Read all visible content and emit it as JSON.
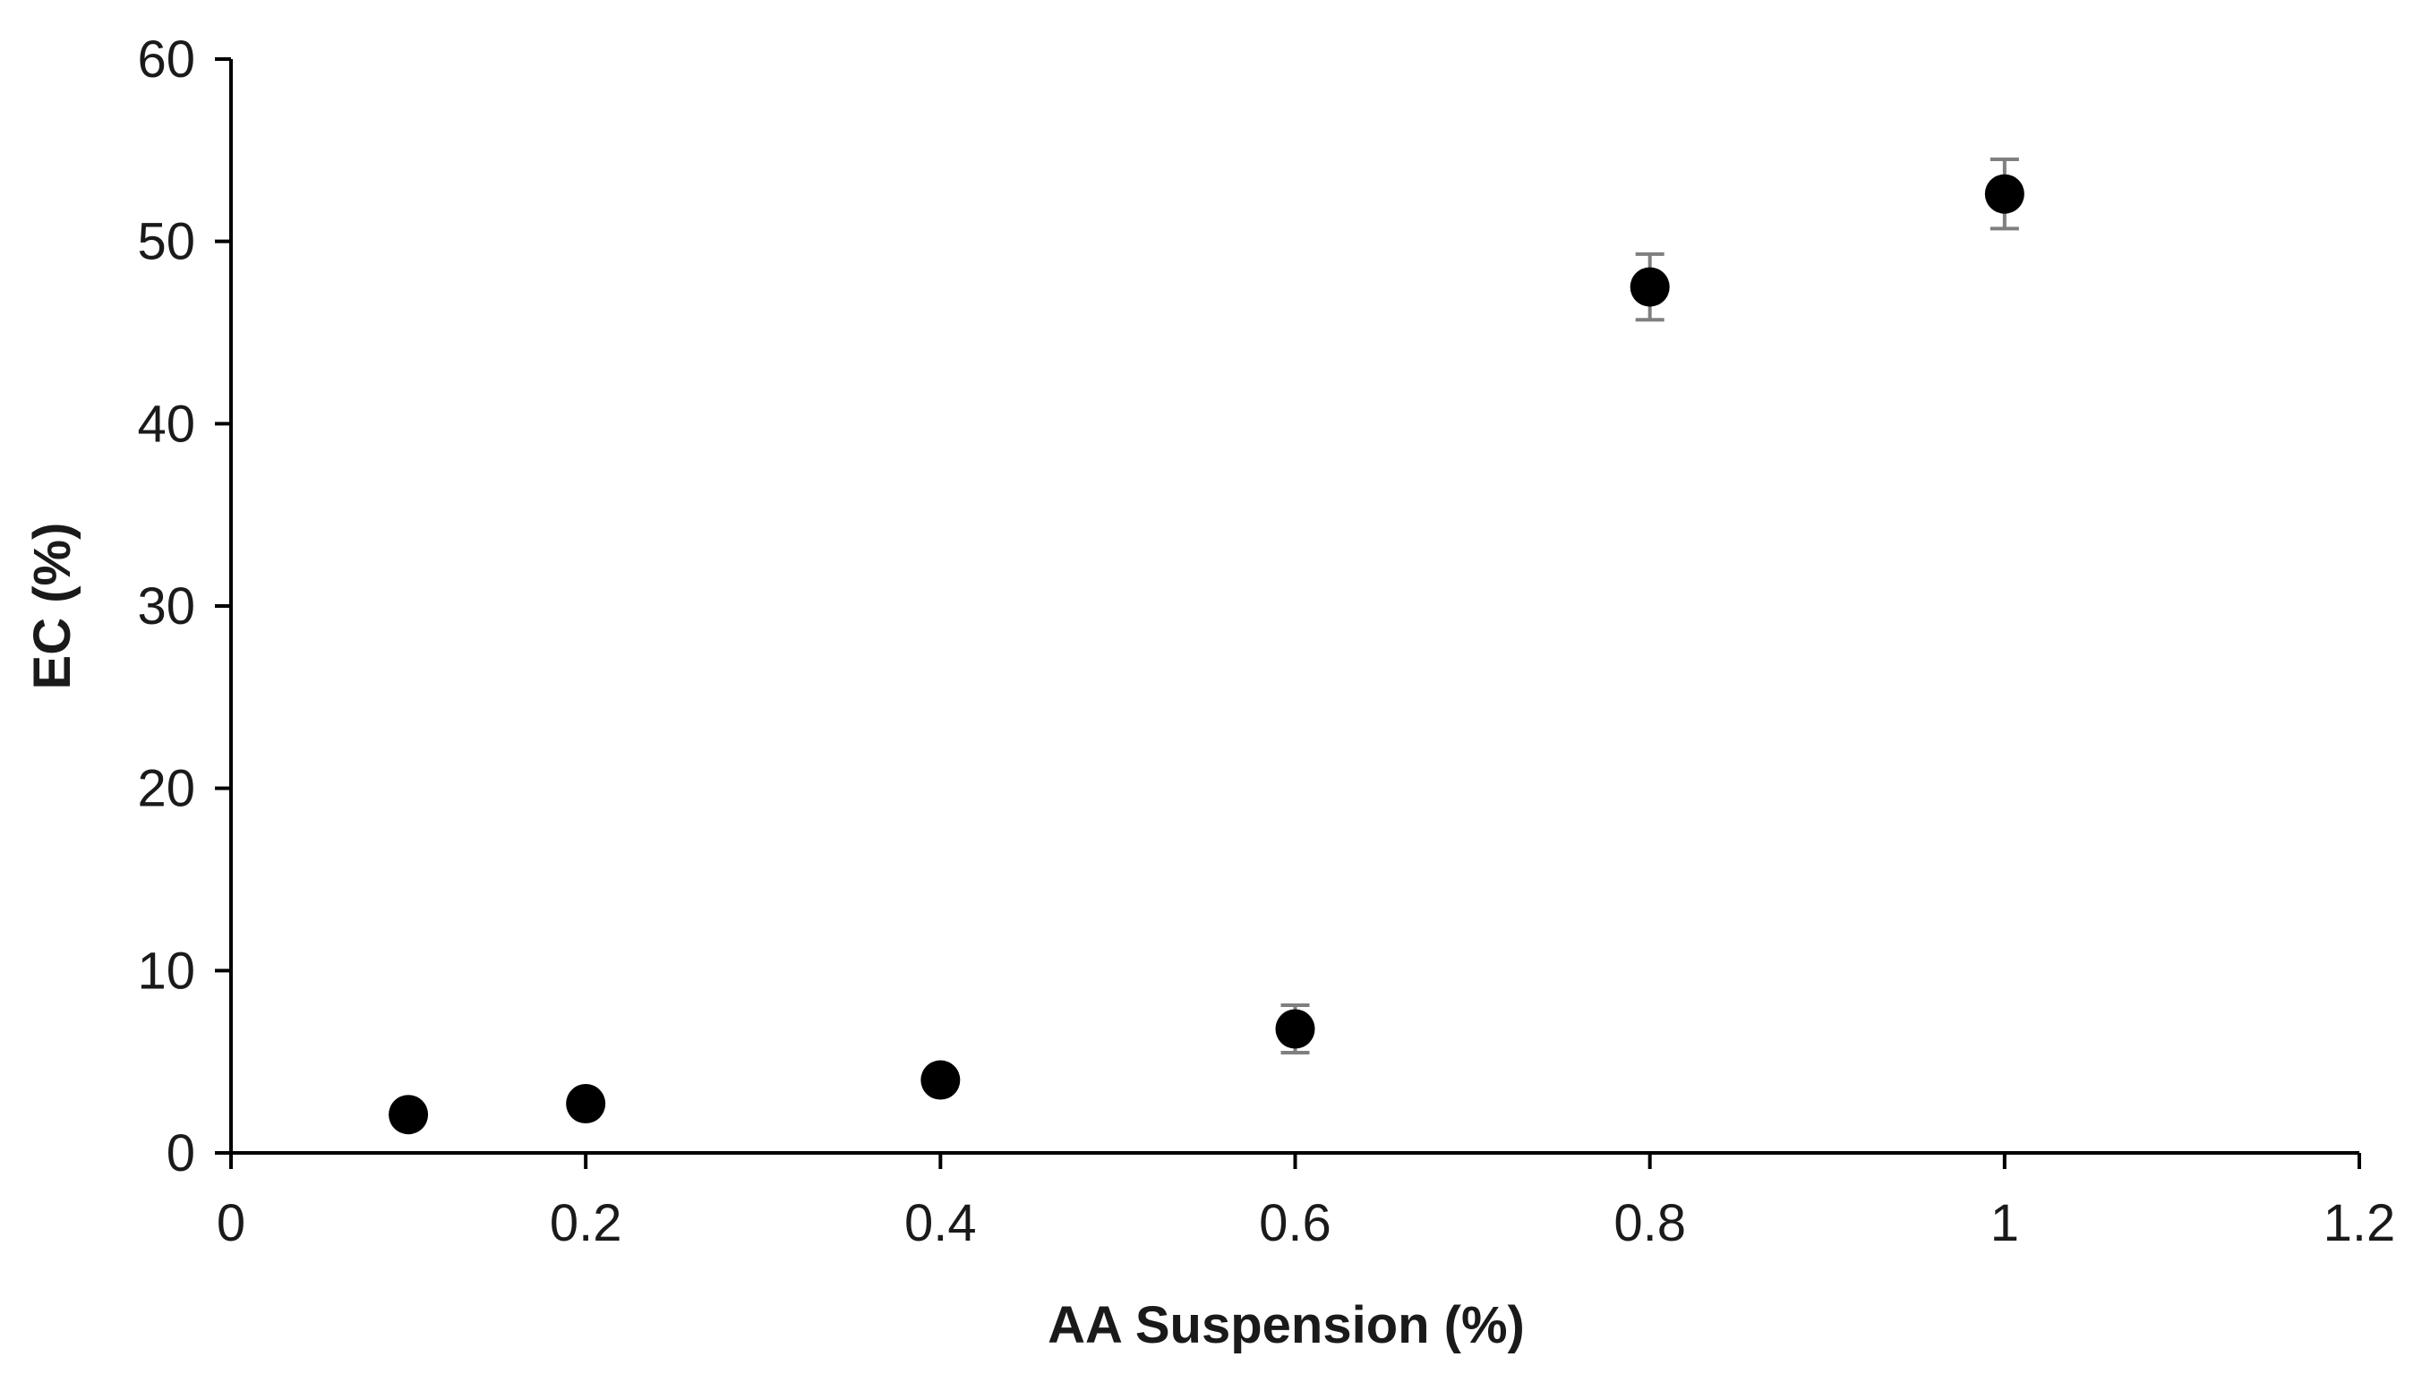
{
  "chart_data": {
    "type": "scatter",
    "title": "",
    "xlabel": "AA Suspension (%)",
    "ylabel": "EC (%)",
    "xlim": [
      0,
      1.2
    ],
    "ylim": [
      0,
      60
    ],
    "xticks": [
      0,
      0.2,
      0.4,
      0.6,
      0.8,
      1,
      1.2
    ],
    "xtick_labels": [
      "0",
      "0.2",
      "0.4",
      "0.6",
      "0.8",
      "1",
      "1.2"
    ],
    "yticks": [
      0,
      10,
      20,
      30,
      40,
      50,
      60
    ],
    "ytick_labels": [
      "0",
      "10",
      "20",
      "30",
      "40",
      "50",
      "60"
    ],
    "grid": false,
    "legend": "none",
    "marker_color": "#000000",
    "error_bar_color": "#7f7f7f",
    "series": [
      {
        "x": [
          0.1,
          0.2,
          0.4,
          0.6,
          0.8,
          1.0
        ],
        "y": [
          2.1,
          2.7,
          4.0,
          6.8,
          47.5,
          52.6
        ],
        "error": [
          0.0,
          0.0,
          0.0,
          1.3,
          1.8,
          1.9
        ]
      }
    ]
  }
}
